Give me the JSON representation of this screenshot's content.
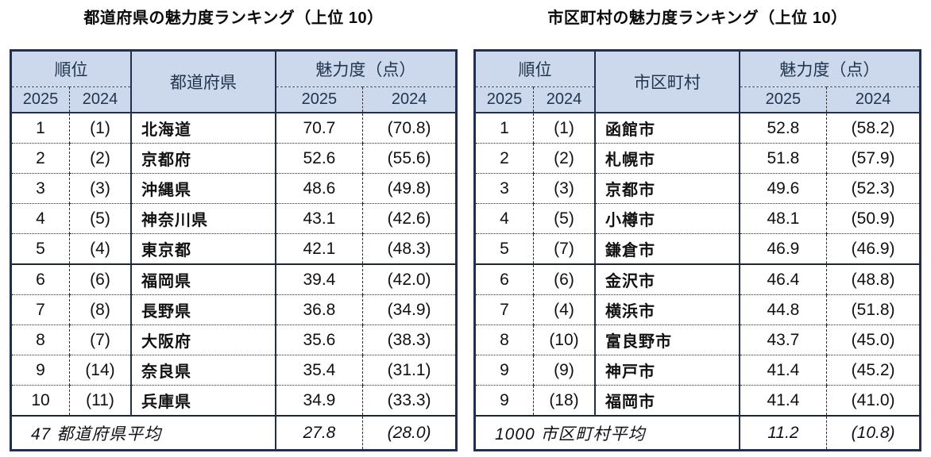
{
  "colors": {
    "header_bg": "#ccd8eb",
    "header_text": "#21364e",
    "border": "#22304d",
    "text": "#111111"
  },
  "tables": [
    {
      "title": "都道府県の魅力度ランキング（上位 10）",
      "headers": {
        "rank": "順位",
        "name": "都道府県",
        "score": "魅力度（点）",
        "year_new": "2025",
        "year_old": "2024"
      },
      "rows": [
        {
          "rank_new": "1",
          "rank_old": "(1)",
          "name": "北海道",
          "score_new": "70.7",
          "score_old": "(70.8)"
        },
        {
          "rank_new": "2",
          "rank_old": "(2)",
          "name": "京都府",
          "score_new": "52.6",
          "score_old": "(55.6)"
        },
        {
          "rank_new": "3",
          "rank_old": "(3)",
          "name": "沖縄県",
          "score_new": "48.6",
          "score_old": "(49.8)"
        },
        {
          "rank_new": "4",
          "rank_old": "(5)",
          "name": "神奈川県",
          "score_new": "43.1",
          "score_old": "(42.6)"
        },
        {
          "rank_new": "5",
          "rank_old": "(4)",
          "name": "東京都",
          "score_new": "42.1",
          "score_old": "(48.3)"
        },
        {
          "rank_new": "6",
          "rank_old": "(6)",
          "name": "福岡県",
          "score_new": "39.4",
          "score_old": "(42.0)"
        },
        {
          "rank_new": "7",
          "rank_old": "(8)",
          "name": "長野県",
          "score_new": "36.8",
          "score_old": "(34.9)"
        },
        {
          "rank_new": "8",
          "rank_old": "(7)",
          "name": "大阪府",
          "score_new": "35.6",
          "score_old": "(38.3)"
        },
        {
          "rank_new": "9",
          "rank_old": "(14)",
          "name": "奈良県",
          "score_new": "35.4",
          "score_old": "(31.1)"
        },
        {
          "rank_new": "10",
          "rank_old": "(11)",
          "name": "兵庫県",
          "score_new": "34.9",
          "score_old": "(33.3)"
        }
      ],
      "footer": {
        "label": "47 都道府県平均",
        "score_new": "27.8",
        "score_old": "(28.0)"
      }
    },
    {
      "title": "市区町村の魅力度ランキング（上位 10）",
      "headers": {
        "rank": "順位",
        "name": "市区町村",
        "score": "魅力度（点）",
        "year_new": "2025",
        "year_old": "2024"
      },
      "rows": [
        {
          "rank_new": "1",
          "rank_old": "(1)",
          "name": "函館市",
          "score_new": "52.8",
          "score_old": "(58.2)"
        },
        {
          "rank_new": "2",
          "rank_old": "(2)",
          "name": "札幌市",
          "score_new": "51.8",
          "score_old": "(57.9)"
        },
        {
          "rank_new": "3",
          "rank_old": "(3)",
          "name": "京都市",
          "score_new": "49.6",
          "score_old": "(52.3)"
        },
        {
          "rank_new": "4",
          "rank_old": "(5)",
          "name": "小樽市",
          "score_new": "48.1",
          "score_old": "(50.9)"
        },
        {
          "rank_new": "5",
          "rank_old": "(7)",
          "name": "鎌倉市",
          "score_new": "46.9",
          "score_old": "(46.9)"
        },
        {
          "rank_new": "6",
          "rank_old": "(6)",
          "name": "金沢市",
          "score_new": "46.4",
          "score_old": "(48.8)"
        },
        {
          "rank_new": "7",
          "rank_old": "(4)",
          "name": "横浜市",
          "score_new": "44.8",
          "score_old": "(51.8)"
        },
        {
          "rank_new": "8",
          "rank_old": "(10)",
          "name": "富良野市",
          "score_new": "43.7",
          "score_old": "(45.0)"
        },
        {
          "rank_new": "9",
          "rank_old": "(9)",
          "name": "神戸市",
          "score_new": "41.4",
          "score_old": "(45.2)"
        },
        {
          "rank_new": "9",
          "rank_old": "(18)",
          "name": "福岡市",
          "score_new": "41.4",
          "score_old": "(41.0)"
        }
      ],
      "footer": {
        "label": "1000 市区町村平均",
        "score_new": "11.2",
        "score_old": "(10.8)"
      }
    }
  ]
}
